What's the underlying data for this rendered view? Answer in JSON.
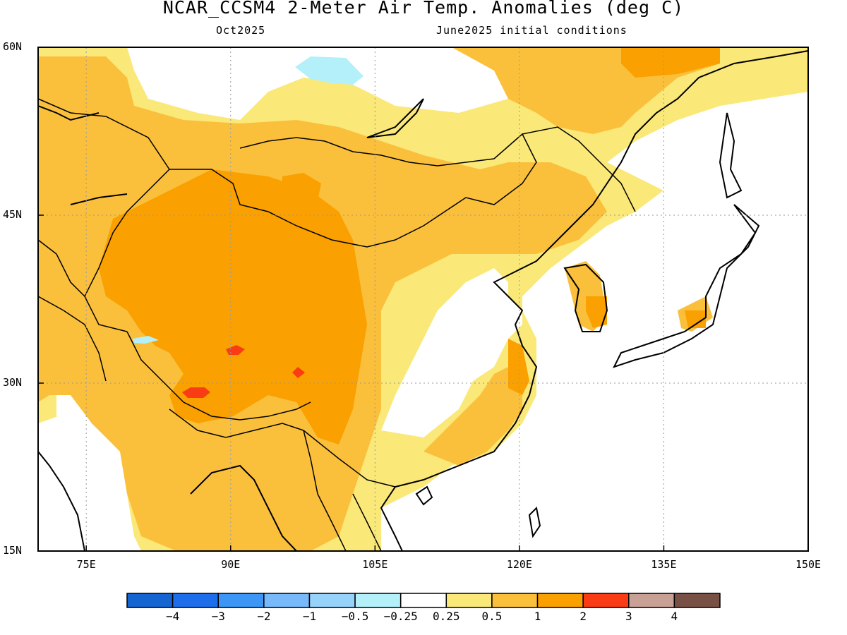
{
  "header": {
    "title": "NCAR_CCSM4 2-Meter Air Temp. Anomalies (deg C)",
    "subtitle_left": "Oct2025",
    "subtitle_right": "June2025 initial conditions"
  },
  "map": {
    "lat_labels": [
      "60N",
      "45N",
      "30N",
      "15N"
    ],
    "lon_labels": [
      "75E",
      "90E",
      "105E",
      "120E",
      "135E",
      "150E"
    ],
    "lat_values": [
      60,
      45,
      30,
      15
    ],
    "lon_values": [
      75,
      90,
      105,
      120,
      135,
      150
    ],
    "extent": {
      "lon": [
        70,
        150
      ],
      "lat": [
        15,
        60
      ]
    },
    "grid_lines": "dotted"
  },
  "colorbar": {
    "colors": [
      "#1464d2",
      "#1e6eeb",
      "#3c96f5",
      "#78b9fa",
      "#96d2fa",
      "#b4f0fa",
      "#ffffff",
      "#fae878",
      "#fac03c",
      "#faa000",
      "#fa3c14",
      "#c8a096",
      "#785046"
    ],
    "labels": [
      "-4",
      "-3",
      "-2",
      "-1",
      "-0.5",
      "-0.25",
      "0.25",
      "0.5",
      "1",
      "2",
      "3",
      "4"
    ]
  },
  "colors": {
    "anomaly_0_25_to_0_5": "#fae878",
    "anomaly_0_5_to_1": "#fac03c",
    "anomaly_1_to_2": "#faa000",
    "anomaly_2_to_3": "#fa3c14",
    "anomaly_neg_0_5_to_neg_0_25": "#b4f0fa",
    "neutral": "#ffffff"
  }
}
